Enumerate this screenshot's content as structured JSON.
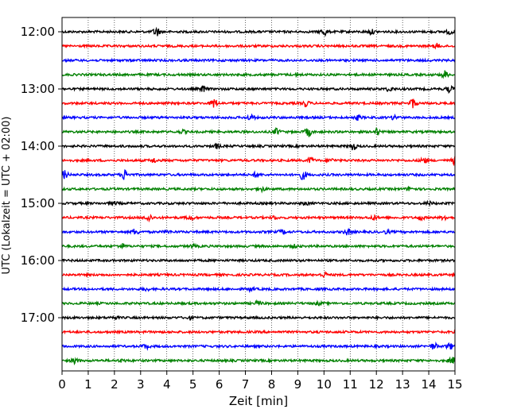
{
  "chart_data": {
    "type": "line",
    "title": "",
    "xlabel": "Zeit  [min]",
    "ylabel": "UTC (Lokalzeit = UTC + 02:00)",
    "xlim": [
      0,
      15
    ],
    "x_ticks": [
      "0",
      "1",
      "2",
      "3",
      "4",
      "5",
      "6",
      "7",
      "8",
      "9",
      "10",
      "11",
      "12",
      "13",
      "14",
      "15"
    ],
    "y_ticks": [
      "12:00",
      "13:00",
      "14:00",
      "15:00",
      "16:00",
      "17:00"
    ],
    "grid": "vertical dotted lines at each minute",
    "trace_interval_min": 15,
    "color_cycle": [
      "#000000",
      "#ff0000",
      "#0000ff",
      "#008000"
    ],
    "series": [
      {
        "start": "12:00",
        "color": "#000000",
        "bursts": [
          [
            3.6,
            7
          ],
          [
            10.0,
            6
          ],
          [
            11.8,
            4
          ],
          [
            14.8,
            4
          ]
        ]
      },
      {
        "start": "12:15",
        "color": "#ff0000",
        "bursts": [
          [
            14.3,
            4
          ]
        ]
      },
      {
        "start": "12:30",
        "color": "#0000ff",
        "bursts": []
      },
      {
        "start": "12:45",
        "color": "#008000",
        "bursts": [
          [
            9.0,
            3
          ],
          [
            14.6,
            6
          ]
        ]
      },
      {
        "start": "13:00",
        "color": "#000000",
        "bursts": [
          [
            5.4,
            5
          ],
          [
            12.5,
            4
          ],
          [
            14.8,
            5
          ]
        ]
      },
      {
        "start": "13:15",
        "color": "#ff0000",
        "bursts": [
          [
            5.8,
            7
          ],
          [
            9.3,
            5
          ],
          [
            13.4,
            7
          ]
        ]
      },
      {
        "start": "13:30",
        "color": "#0000ff",
        "bursts": [
          [
            7.2,
            5
          ],
          [
            11.3,
            4
          ],
          [
            12.7,
            4
          ]
        ]
      },
      {
        "start": "13:45",
        "color": "#008000",
        "bursts": [
          [
            4.6,
            3
          ],
          [
            8.2,
            5
          ],
          [
            9.4,
            7
          ],
          [
            12.0,
            5
          ]
        ]
      },
      {
        "start": "14:00",
        "color": "#000000",
        "bursts": [
          [
            5.9,
            4
          ],
          [
            11.1,
            6
          ]
        ]
      },
      {
        "start": "14:15",
        "color": "#ff0000",
        "bursts": [
          [
            3.5,
            4
          ],
          [
            9.5,
            5
          ],
          [
            10.3,
            3
          ],
          [
            13.8,
            5
          ],
          [
            15.0,
            6
          ]
        ]
      },
      {
        "start": "14:30",
        "color": "#0000ff",
        "bursts": [
          [
            0.1,
            6
          ],
          [
            2.4,
            8
          ],
          [
            7.4,
            4
          ],
          [
            9.2,
            7
          ]
        ]
      },
      {
        "start": "14:45",
        "color": "#008000",
        "bursts": [
          [
            7.6,
            4
          ],
          [
            13.3,
            4
          ]
        ]
      },
      {
        "start": "15:00",
        "color": "#000000",
        "bursts": [
          [
            2.0,
            3
          ],
          [
            9.3,
            3
          ],
          [
            14.0,
            3
          ]
        ]
      },
      {
        "start": "15:15",
        "color": "#ff0000",
        "bursts": [
          [
            3.3,
            6
          ],
          [
            4.9,
            4
          ],
          [
            8.1,
            3
          ],
          [
            11.9,
            4
          ],
          [
            13.7,
            4
          ],
          [
            14.6,
            4
          ]
        ]
      },
      {
        "start": "15:30",
        "color": "#0000ff",
        "bursts": [
          [
            2.8,
            5
          ],
          [
            4.0,
            3
          ],
          [
            8.4,
            4
          ],
          [
            10.9,
            5
          ],
          [
            12.4,
            3
          ]
        ]
      },
      {
        "start": "15:45",
        "color": "#008000",
        "bursts": [
          [
            2.3,
            4
          ],
          [
            5.0,
            3
          ],
          [
            8.9,
            3
          ]
        ]
      },
      {
        "start": "16:00",
        "color": "#000000",
        "bursts": []
      },
      {
        "start": "16:15",
        "color": "#ff0000",
        "bursts": [
          [
            10.0,
            4
          ]
        ]
      },
      {
        "start": "16:30",
        "color": "#0000ff",
        "bursts": [
          [
            3.2,
            3
          ],
          [
            7.2,
            3
          ]
        ]
      },
      {
        "start": "16:45",
        "color": "#008000",
        "bursts": [
          [
            7.5,
            4
          ],
          [
            9.8,
            3
          ]
        ]
      },
      {
        "start": "17:00",
        "color": "#000000",
        "bursts": [
          [
            2.0,
            3
          ],
          [
            4.9,
            3
          ]
        ]
      },
      {
        "start": "17:15",
        "color": "#ff0000",
        "bursts": []
      },
      {
        "start": "17:30",
        "color": "#0000ff",
        "bursts": [
          [
            3.2,
            4
          ],
          [
            14.2,
            5
          ],
          [
            14.8,
            5
          ]
        ]
      },
      {
        "start": "17:45",
        "color": "#008000",
        "bursts": [
          [
            0.5,
            5
          ],
          [
            2.3,
            3
          ],
          [
            14.9,
            5
          ]
        ]
      }
    ]
  }
}
